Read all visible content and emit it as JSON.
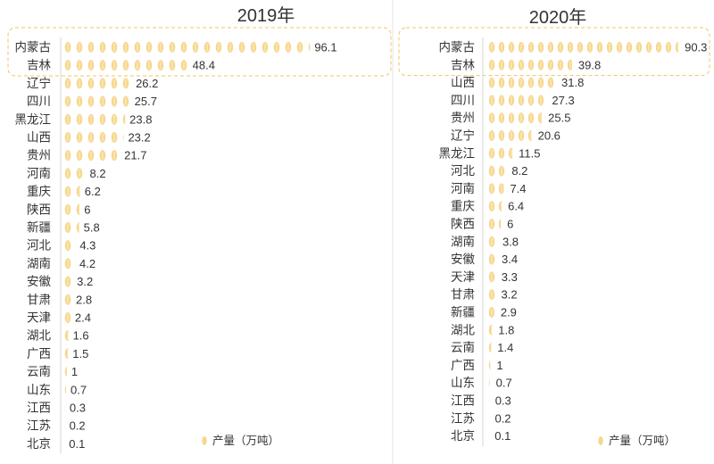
{
  "chart_data": [
    {
      "type": "bar",
      "orientation": "horizontal",
      "title": "2019年",
      "categories": [
        "内蒙古",
        "吉林",
        "辽宁",
        "四川",
        "黑龙江",
        "山西",
        "贵州",
        "河南",
        "重庆",
        "陕西",
        "新疆",
        "河北",
        "湖南",
        "安徽",
        "甘肃",
        "天津",
        "湖北",
        "广西",
        "云南",
        "山东",
        "江西",
        "江苏",
        "北京"
      ],
      "series": [
        {
          "name": "产量（万吨）",
          "values": [
            96.1,
            48.4,
            26.2,
            25.7,
            23.8,
            23.2,
            21.7,
            8.2,
            6.2,
            6,
            5.8,
            4.3,
            4.2,
            3.2,
            2.8,
            2.4,
            1.6,
            1.5,
            1,
            0.7,
            0.3,
            0.2,
            0.1
          ]
        }
      ],
      "highlighted_rows": 2,
      "legend_position": "bottom-right",
      "grid": false
    },
    {
      "type": "bar",
      "orientation": "horizontal",
      "title": "2020年",
      "categories": [
        "内蒙古",
        "吉林",
        "山西",
        "四川",
        "贵州",
        "辽宁",
        "黑龙江",
        "河北",
        "河南",
        "重庆",
        "陕西",
        "湖南",
        "安徽",
        "天津",
        "甘肃",
        "新疆",
        "湖北",
        "云南",
        "广西",
        "山东",
        "江西",
        "江苏",
        "北京"
      ],
      "series": [
        {
          "name": "产量（万吨）",
          "values": [
            90.3,
            39.8,
            31.8,
            27.3,
            25.5,
            20.6,
            11.5,
            8.2,
            7.4,
            6.4,
            6,
            3.8,
            3.4,
            3.3,
            3.2,
            2.9,
            1.8,
            1.4,
            1,
            0.7,
            0.3,
            0.2,
            0.1
          ]
        }
      ],
      "highlighted_rows": 2,
      "legend_position": "bottom-right",
      "grid": false
    }
  ],
  "icon": "grain-icon",
  "colors": {
    "icon": "#f6d78e",
    "icon_stripe": "#fdf0c9",
    "highlight_border": "#f2c462",
    "text": "#333333"
  }
}
